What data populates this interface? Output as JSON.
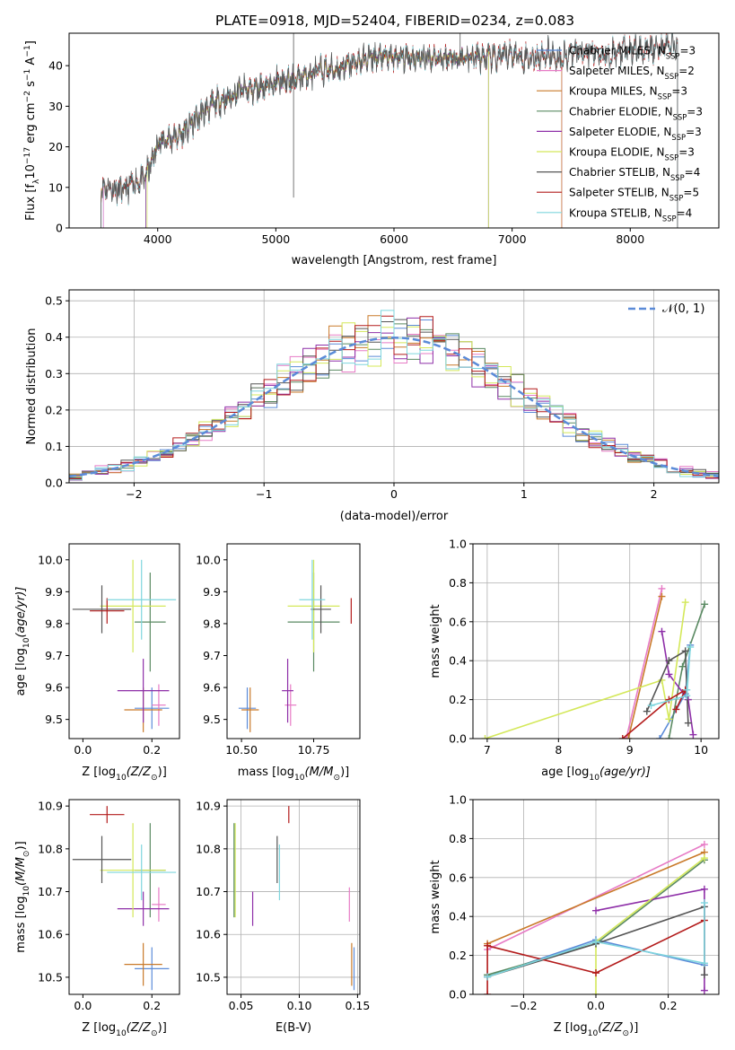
{
  "figure": {
    "title": "PLATE=0918, MJD=52404, FIBERID=0234, z=0.083"
  },
  "colors": {
    "Chabrier MILES": "#5b8bd8",
    "Salpeter MILES": "#e77bc6",
    "Kroupa MILES": "#c97a2a",
    "Chabrier ELODIE": "#5a8a62",
    "Salpeter ELODIE": "#8e2fa8",
    "Kroupa ELODIE": "#d4e85a",
    "Chabrier STELIB": "#555555",
    "Salpeter STELIB": "#b31b1b",
    "Kroupa STELIB": "#7fd6de",
    "grid": "#b0b0b0",
    "gauss": "#5b8bd8"
  },
  "chart_data": [
    {
      "id": "spectrum",
      "type": "line",
      "xlabel": "wavelength [Angstrom, rest frame]",
      "ylabel": "Flux [f",
      "ylabel_sub": "λ",
      "ylabel_rest": "10",
      "ylabel_exp1": "−17",
      "ylabel_mid": " erg cm",
      "ylabel_exp2": "−2",
      "ylabel_mid2": " s",
      "ylabel_exp3": "−1",
      "ylabel_end": " A",
      "ylabel_exp4": "−1",
      "ylabel_close": "]",
      "xlim": [
        3250,
        8750
      ],
      "ylim": [
        0,
        48
      ],
      "xticks": [
        "4000",
        "5000",
        "6000",
        "7000",
        "8000"
      ],
      "xtick_values": [
        4000,
        5000,
        6000,
        7000,
        8000
      ],
      "yticks": [
        "0",
        "10",
        "20",
        "30",
        "40"
      ],
      "ytick_values": [
        0,
        10,
        20,
        30,
        40
      ],
      "continuum": [
        [
          3520,
          10
        ],
        [
          3600,
          10
        ],
        [
          3700,
          9
        ],
        [
          3800,
          11
        ],
        [
          3880,
          12
        ],
        [
          3950,
          16
        ],
        [
          4000,
          21
        ],
        [
          4100,
          22
        ],
        [
          4200,
          23
        ],
        [
          4300,
          26
        ],
        [
          4400,
          29
        ],
        [
          4500,
          31
        ],
        [
          4600,
          32
        ],
        [
          4700,
          34
        ],
        [
          4800,
          34
        ],
        [
          4900,
          35
        ],
        [
          5000,
          36
        ],
        [
          5100,
          36
        ],
        [
          5200,
          37
        ],
        [
          5300,
          38
        ],
        [
          5400,
          39
        ],
        [
          5500,
          39
        ],
        [
          5600,
          40
        ],
        [
          5700,
          41
        ],
        [
          5800,
          42
        ],
        [
          5900,
          42
        ],
        [
          6000,
          42
        ],
        [
          6100,
          42
        ],
        [
          6200,
          42
        ],
        [
          6300,
          42
        ],
        [
          6400,
          42
        ],
        [
          6500,
          42
        ],
        [
          6600,
          42
        ],
        [
          6700,
          42
        ],
        [
          6800,
          42
        ],
        [
          6900,
          42
        ],
        [
          7000,
          43
        ],
        [
          7100,
          42
        ],
        [
          7200,
          42
        ],
        [
          7300,
          43
        ],
        [
          7400,
          42
        ],
        [
          7500,
          43
        ],
        [
          7600,
          44
        ],
        [
          7700,
          43
        ],
        [
          7800,
          43
        ],
        [
          7900,
          43
        ],
        [
          8000,
          44
        ],
        [
          8100,
          44
        ],
        [
          8200,
          44
        ],
        [
          8300,
          45
        ],
        [
          8400,
          45
        ]
      ],
      "legend": {
        "placement": "upper right",
        "entries": [
          {
            "label": "Chabrier MILES, N",
            "sub": "SSP",
            "val": "=3"
          },
          {
            "label": "Salpeter MILES, N",
            "sub": "SSP",
            "val": "=2"
          },
          {
            "label": "Kroupa MILES, N",
            "sub": "SSP",
            "val": "=3"
          },
          {
            "label": "Chabrier ELODIE, N",
            "sub": "SSP",
            "val": "=3"
          },
          {
            "label": "Salpeter ELODIE, N",
            "sub": "SSP",
            "val": "=3"
          },
          {
            "label": "Kroupa ELODIE, N",
            "sub": "SSP",
            "val": "=3"
          },
          {
            "label": "Chabrier STELIB, N",
            "sub": "SSP",
            "val": "=4"
          },
          {
            "label": "Salpeter STELIB, N",
            "sub": "SSP",
            "val": "=5"
          },
          {
            "label": "Kroupa STELIB, N",
            "sub": "SSP",
            "val": "=4"
          }
        ]
      }
    },
    {
      "id": "residuals",
      "type": "histogram",
      "xlabel": "(data-model)/error",
      "ylabel": "Normed distribution",
      "xlim": [
        -2.5,
        2.5
      ],
      "ylim": [
        0,
        0.53
      ],
      "xticks": [
        "−2",
        "−1",
        "0",
        "1",
        "2"
      ],
      "xtick_values": [
        -2,
        -1,
        0,
        1,
        2
      ],
      "yticks": [
        "0.0",
        "0.1",
        "0.2",
        "0.3",
        "0.4",
        "0.5"
      ],
      "ytick_values": [
        0,
        0.1,
        0.2,
        0.3,
        0.4,
        0.5
      ],
      "bin_width": 0.1,
      "grid": true,
      "legend_label": "𝒩(0, 1)",
      "legend_placement": "upper right"
    },
    {
      "id": "age_vs_Z",
      "type": "errorbar",
      "xlabel": "Z [log",
      "xlabel_sub": "10",
      "xlabel_rest": "(Z/Z",
      "xlabel_sub2": "⊙",
      "xlabel_end": ")]",
      "ylabel": "age  [log",
      "ylabel_sub": "10",
      "ylabel_end": "(age/yr)]",
      "xlim": [
        -0.04,
        0.28
      ],
      "ylim": [
        9.44,
        10.05
      ],
      "xticks": [
        "0.0",
        "0.2"
      ],
      "xtick_values": [
        0.0,
        0.2
      ],
      "yticks": [
        "9.5",
        "9.6",
        "9.7",
        "9.8",
        "9.9",
        "10.0"
      ],
      "ytick_values": [
        9.5,
        9.6,
        9.7,
        9.8,
        9.9,
        10.0
      ]
    },
    {
      "id": "age_vs_mass",
      "type": "errorbar",
      "xlabel": "mass [log",
      "xlabel_sub": "10",
      "xlabel_rest": "(M/M",
      "xlabel_sub2": "⊙",
      "xlabel_end": ")]",
      "xlim": [
        10.45,
        10.91
      ],
      "ylim": [
        9.44,
        10.05
      ],
      "xticks": [
        "10.50",
        "10.75"
      ],
      "xtick_values": [
        10.5,
        10.75
      ],
      "yticks": [
        "9.5",
        "9.6",
        "9.7",
        "9.8",
        "9.9",
        "10.0"
      ],
      "ytick_values": [
        9.5,
        9.6,
        9.7,
        9.8,
        9.9,
        10.0
      ]
    },
    {
      "id": "weight_vs_age",
      "type": "line",
      "xlabel": "age  [log",
      "xlabel_sub": "10",
      "xlabel_end": "(age/yr)]",
      "ylabel": "mass weight",
      "xlim": [
        6.8,
        10.25
      ],
      "ylim": [
        0,
        1
      ],
      "xticks": [
        "7",
        "8",
        "9",
        "10"
      ],
      "xtick_values": [
        7,
        8,
        9,
        10
      ],
      "yticks": [
        "0.0",
        "0.2",
        "0.4",
        "0.6",
        "0.8",
        "1.0"
      ],
      "ytick_values": [
        0,
        0.2,
        0.4,
        0.6,
        0.8,
        1.0
      ],
      "grid": true
    },
    {
      "id": "mass_vs_Z",
      "type": "errorbar",
      "xlabel": "Z [log",
      "xlabel_sub": "10",
      "xlabel_rest": "(Z/Z",
      "xlabel_sub2": "⊙",
      "xlabel_end": ")]",
      "ylabel": "mass [log",
      "ylabel_sub": "10",
      "ylabel_rest": "(M/M",
      "ylabel_sub2": "⊙",
      "ylabel_end": ")]",
      "xlim": [
        -0.04,
        0.28
      ],
      "ylim": [
        10.46,
        10.915
      ],
      "xticks": [
        "0.0",
        "0.2"
      ],
      "xtick_values": [
        0.0,
        0.2
      ],
      "yticks": [
        "10.5",
        "10.6",
        "10.7",
        "10.8",
        "10.9"
      ],
      "ytick_values": [
        10.5,
        10.6,
        10.7,
        10.8,
        10.9
      ]
    },
    {
      "id": "mass_vs_ebv",
      "type": "errorbar",
      "xlabel": "E(B-V)",
      "xlim": [
        0.038,
        0.152
      ],
      "ylim": [
        10.46,
        10.915
      ],
      "xticks": [
        "0.05",
        "0.10",
        "0.15"
      ],
      "xtick_values": [
        0.05,
        0.1,
        0.15
      ],
      "yticks": [
        "10.5",
        "10.6",
        "10.7",
        "10.8",
        "10.9"
      ],
      "ytick_values": [
        10.5,
        10.6,
        10.7,
        10.8,
        10.9
      ],
      "grid": true
    },
    {
      "id": "weight_vs_Z",
      "type": "line",
      "xlabel": "Z [log",
      "xlabel_sub": "10",
      "xlabel_rest": "(Z/Z",
      "xlabel_sub2": "⊙",
      "xlabel_end": ")]",
      "ylabel": "mass weight",
      "xlim": [
        -0.34,
        0.34
      ],
      "ylim": [
        0,
        1
      ],
      "xticks": [
        "−0.2",
        "0.0",
        "0.2"
      ],
      "xtick_values": [
        -0.2,
        0.0,
        0.2
      ],
      "yticks": [
        "0.0",
        "0.2",
        "0.4",
        "0.6",
        "0.8",
        "1.0"
      ],
      "ytick_values": [
        0,
        0.2,
        0.4,
        0.6,
        0.8,
        1.0
      ],
      "grid": true
    }
  ],
  "models": [
    {
      "name": "Chabrier MILES",
      "Z": [
        0.15,
        0.25
      ],
      "age": [
        9.47,
        9.6
      ],
      "mass": 10.5,
      "mass_err": [
        10.47,
        10.57
      ],
      "ebv": 0.147,
      "w_age": [
        [
          9.42,
          0.0
        ],
        [
          9.78,
          0.23
        ],
        [
          9.85,
          0.48
        ]
      ],
      "w_Z": [
        [
          -0.3,
          0.09
        ],
        [
          0.0,
          0.28
        ],
        [
          0.3,
          0.15
        ]
      ]
    },
    {
      "name": "Salpeter MILES",
      "Z": [
        0.2,
        0.24
      ],
      "age": [
        9.48,
        9.61
      ],
      "mass": 10.65,
      "mass_err": [
        10.63,
        10.71
      ],
      "ebv": 0.143,
      "w_age": [
        [
          8.95,
          0.0
        ],
        [
          9.45,
          0.77
        ]
      ],
      "w_Z": [
        [
          -0.3,
          0.23
        ],
        [
          0.3,
          0.77
        ]
      ]
    },
    {
      "name": "Kroupa MILES",
      "Z": [
        0.12,
        0.23
      ],
      "age": [
        9.46,
        9.6
      ],
      "mass": 10.515,
      "mass_err": [
        10.48,
        10.58
      ],
      "ebv": 0.145,
      "w_age": [
        [
          8.98,
          0.0
        ],
        [
          9.45,
          0.73
        ]
      ],
      "w_Z": [
        [
          -0.3,
          0.26
        ],
        [
          0.3,
          0.73
        ]
      ]
    },
    {
      "name": "Chabrier ELODIE",
      "Z": [
        0.15,
        0.24
      ],
      "age": [
        9.96,
        9.65
      ],
      "mass": 10.83,
      "mass_err": [
        10.64,
        10.86
      ],
      "ebv": 0.044,
      "w_age": [
        [
          9.55,
          0.0
        ],
        [
          9.74,
          0.37
        ],
        [
          10.05,
          0.69
        ]
      ],
      "w_Z": [
        [
          -0.3,
          0.1
        ],
        [
          0.0,
          0.26
        ],
        [
          0.3,
          0.69
        ]
      ]
    },
    {
      "name": "Salpeter ELODIE",
      "Z": [
        0.1,
        0.25
      ],
      "age": [
        9.49,
        9.69
      ],
      "mass": 10.65,
      "mass_err": [
        10.62,
        10.7
      ],
      "ebv": 0.06,
      "w_age": [
        [
          9.45,
          0.55
        ],
        [
          9.55,
          0.33
        ],
        [
          9.82,
          0.2
        ],
        [
          9.89,
          0.02
        ]
      ],
      "w_Z": [
        [
          0.0,
          0.43
        ],
        [
          0.3,
          0.54
        ],
        [
          0.3,
          0.02
        ]
      ]
    },
    {
      "name": "Kroupa ELODIE",
      "Z": [
        0.05,
        0.24
      ],
      "age": [
        9.71,
        10.0
      ],
      "mass": 10.7,
      "mass_err": [
        10.64,
        10.86
      ],
      "ebv": 0.045,
      "w_age": [
        [
          6.97,
          0.0
        ],
        [
          9.45,
          0.3
        ],
        [
          9.55,
          0.1
        ],
        [
          9.78,
          0.7
        ]
      ],
      "w_Z": [
        [
          0.0,
          0.0
        ],
        [
          0.0,
          0.27
        ],
        [
          0.3,
          0.7
        ]
      ]
    },
    {
      "name": "Chabrier STELIB",
      "Z": [
        -0.03,
        0.14
      ],
      "age": [
        9.77,
        9.92
      ],
      "mass": 10.735,
      "mass_err": [
        10.72,
        10.83
      ],
      "ebv": 0.081,
      "w_age": [
        [
          9.24,
          0.14
        ],
        [
          9.55,
          0.4
        ],
        [
          9.78,
          0.45
        ],
        [
          9.82,
          0.08
        ]
      ],
      "w_Z": [
        [
          -0.3,
          0.09
        ],
        [
          0.0,
          0.26
        ],
        [
          0.3,
          0.45
        ],
        [
          0.3,
          0.1
        ]
      ]
    },
    {
      "name": "Salpeter STELIB",
      "Z": [
        0.02,
        0.12
      ],
      "age": [
        9.8,
        9.88
      ],
      "mass": 10.88,
      "mass_err": [
        10.86,
        10.9
      ],
      "ebv": 0.091,
      "w_age": [
        [
          8.9,
          0.0
        ],
        [
          9.55,
          0.2
        ],
        [
          9.78,
          0.25
        ],
        [
          9.65,
          0.15
        ]
      ],
      "w_Z": [
        [
          -0.3,
          0.0
        ],
        [
          -0.3,
          0.25
        ],
        [
          0.0,
          0.11
        ],
        [
          0.3,
          0.38
        ]
      ]
    },
    {
      "name": "Kroupa STELIB",
      "Z": [
        0.07,
        0.27
      ],
      "age": [
        9.75,
        10.0
      ],
      "mass": 10.73,
      "mass_err": [
        10.68,
        10.81
      ],
      "ebv": 0.083,
      "w_age": [
        [
          9.3,
          0.17
        ],
        [
          9.8,
          0.22
        ],
        [
          9.85,
          0.47
        ],
        [
          9.8,
          0.25
        ]
      ],
      "w_Z": [
        [
          -0.3,
          0.09
        ],
        [
          0.0,
          0.27
        ],
        [
          0.3,
          0.16
        ],
        [
          0.3,
          0.47
        ]
      ]
    }
  ]
}
